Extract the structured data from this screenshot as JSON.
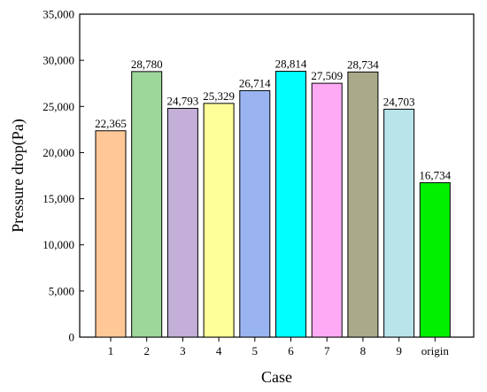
{
  "chart_data": {
    "type": "bar",
    "xlabel": "Case",
    "ylabel": "Pressure drop(Pa)",
    "ylim": [
      0,
      35000
    ],
    "yticks": [
      0,
      5000,
      10000,
      15000,
      20000,
      25000,
      30000,
      35000
    ],
    "ytick_labels": [
      "0",
      "5,000",
      "10,000",
      "15,000",
      "20,000",
      "25,000",
      "30,000",
      "35,000"
    ],
    "categories": [
      "1",
      "2",
      "3",
      "4",
      "5",
      "6",
      "7",
      "8",
      "9",
      "origin"
    ],
    "values": [
      22365,
      28780,
      24793,
      25329,
      26714,
      28814,
      27509,
      28734,
      24703,
      16734
    ],
    "value_labels": [
      "22,365",
      "28,780",
      "24,793",
      "25,329",
      "26,714",
      "28,814",
      "27,509",
      "28,734",
      "24,703",
      "16,734"
    ],
    "colors": [
      "#FFC896",
      "#9ED79A",
      "#C3AFD8",
      "#FFFF99",
      "#99B4F0",
      "#00FFFF",
      "#FFAAF5",
      "#AAAA8A",
      "#B9E4EA",
      "#00F000"
    ],
    "grid": false,
    "legend": "none"
  }
}
